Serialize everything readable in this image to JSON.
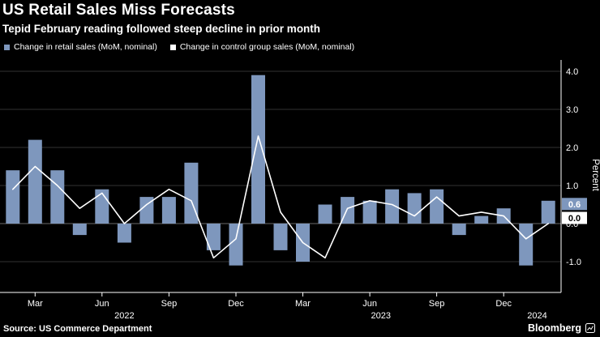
{
  "header": {
    "title": "US Retail Sales Miss Forecasts",
    "subtitle": "Tepid February reading followed steep decline in prior month"
  },
  "legend": {
    "items": [
      {
        "label": "Change in retail sales (MoM, nominal)",
        "color": "#7e97bd"
      },
      {
        "label": "Change in control group sales (MoM, nominal)",
        "color": "#ffffff"
      }
    ]
  },
  "chart_data": {
    "type": "bar+line",
    "title": "US Retail Sales Miss Forecasts",
    "x": [
      "Feb 2022",
      "Mar 2022",
      "Apr 2022",
      "May 2022",
      "Jun 2022",
      "Jul 2022",
      "Aug 2022",
      "Sep 2022",
      "Oct 2022",
      "Nov 2022",
      "Dec 2022",
      "Jan 2023",
      "Feb 2023",
      "Mar 2023",
      "Apr 2023",
      "May 2023",
      "Jun 2023",
      "Jul 2023",
      "Aug 2023",
      "Sep 2023",
      "Oct 2023",
      "Nov 2023",
      "Dec 2023",
      "Jan 2024",
      "Feb 2024"
    ],
    "series": [
      {
        "name": "Change in retail sales (MoM, nominal)",
        "type": "bar",
        "color": "#7e97bd",
        "values": [
          1.4,
          2.2,
          1.4,
          -0.3,
          0.9,
          -0.5,
          0.7,
          0.7,
          1.6,
          -0.7,
          -1.1,
          3.9,
          -0.7,
          -1.0,
          0.5,
          0.7,
          0.6,
          0.9,
          0.8,
          0.9,
          -0.3,
          0.2,
          0.4,
          -1.1,
          0.6
        ]
      },
      {
        "name": "Change in control group sales (MoM, nominal)",
        "type": "line",
        "color": "#ffffff",
        "values": [
          0.9,
          1.5,
          1.0,
          0.4,
          0.8,
          0.0,
          0.5,
          0.9,
          0.6,
          -0.9,
          -0.4,
          2.3,
          0.3,
          -0.5,
          -0.9,
          0.4,
          0.6,
          0.5,
          0.2,
          0.7,
          0.2,
          0.3,
          0.2,
          -0.4,
          0.0
        ]
      }
    ],
    "ylabel": "Percent",
    "ylim": [
      -1.8,
      4.35
    ],
    "grid": true,
    "legend_position": "top",
    "yticks": [
      {
        "value": 4,
        "label": "4.0"
      },
      {
        "value": 3,
        "label": "3.0"
      },
      {
        "value": 2,
        "label": "2.0"
      },
      {
        "value": 1,
        "label": "1.0"
      },
      {
        "value": 0,
        "label": "0.0"
      },
      {
        "value": -1,
        "label": "-1.0"
      }
    ],
    "xticks": [
      {
        "index": 1,
        "label": "Mar"
      },
      {
        "index": 4,
        "label": "Jun"
      },
      {
        "index": 7,
        "label": "Sep"
      },
      {
        "index": 10,
        "label": "Dec"
      },
      {
        "index": 13,
        "label": "Mar"
      },
      {
        "index": 16,
        "label": "Jun"
      },
      {
        "index": 19,
        "label": "Sep"
      },
      {
        "index": 22,
        "label": "Dec"
      }
    ],
    "yearticks": [
      {
        "index": 5,
        "label": "2022"
      },
      {
        "index": 16.5,
        "label": "2023"
      },
      {
        "index": 23.5,
        "label": "2024"
      }
    ],
    "end_labels": [
      {
        "text": "0.6",
        "value": 0.6,
        "bg": "#7e97bd",
        "fg": "#ffffff"
      },
      {
        "text": "0.0",
        "value": 0.0,
        "bg": "#ffffff",
        "fg": "#000000"
      }
    ]
  },
  "footer": {
    "source": "Source: US Commerce Department",
    "brand": "Bloomberg"
  }
}
